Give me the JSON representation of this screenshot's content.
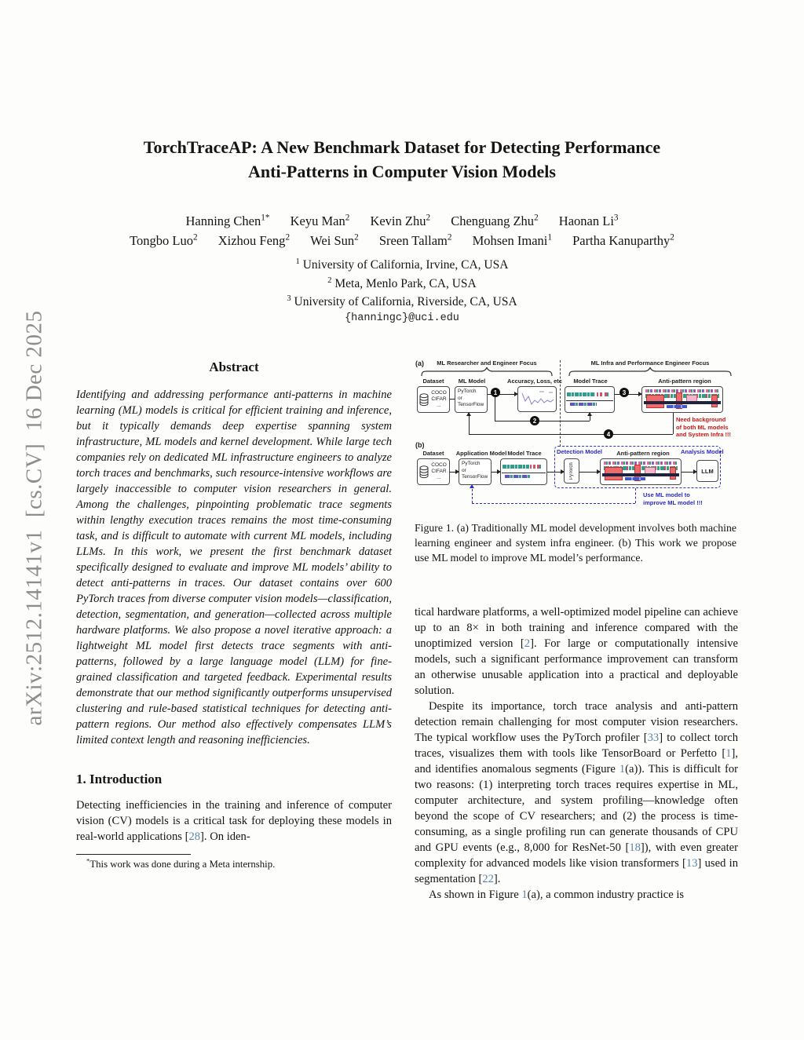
{
  "colors": {
    "citation_link": "#5b84a8",
    "figure_warning_red": "#cc1414",
    "figure_accent_blue": "#2a2ac8",
    "watermark_gray": "#8d8d8d"
  },
  "sidebar": {
    "arxiv_label": "arXiv:2512.14141v1  [cs.CV]  16 Dec 2025"
  },
  "header": {
    "title_line1": "TorchTraceAP: A New Benchmark Dataset for Detecting Performance",
    "title_line2": "Anti-Patterns in Computer Vision Models",
    "authors_line1": [
      {
        "name": "Hanning Chen",
        "sup": "1*"
      },
      {
        "name": "Keyu Man",
        "sup": "2"
      },
      {
        "name": "Kevin Zhu",
        "sup": "2"
      },
      {
        "name": "Chenguang Zhu",
        "sup": "2"
      },
      {
        "name": "Haonan Li",
        "sup": "3"
      }
    ],
    "authors_line2": [
      {
        "name": "Tongbo Luo",
        "sup": "2"
      },
      {
        "name": "Xizhou Feng",
        "sup": "2"
      },
      {
        "name": "Wei Sun",
        "sup": "2"
      },
      {
        "name": "Sreen Tallam",
        "sup": "2"
      },
      {
        "name": "Mohsen Imani",
        "sup": "1"
      },
      {
        "name": "Partha Kanuparthy",
        "sup": "2"
      }
    ],
    "affiliations": [
      {
        "sup": "1",
        "text": "University of California, Irvine, CA, USA"
      },
      {
        "sup": "2",
        "text": "Meta, Menlo Park, CA, USA"
      },
      {
        "sup": "3",
        "text": "University of California, Riverside, CA, USA"
      }
    ],
    "email": "{hanningc}@uci.edu"
  },
  "abstract": {
    "heading": "Abstract",
    "text": "Identifying and addressing performance anti-patterns in machine learning (ML) models is critical for efficient training and inference, but it typically demands deep expertise spanning system infrastructure, ML models and kernel development. While large tech companies rely on dedicated ML infrastructure engineers to analyze torch traces and benchmarks, such resource-intensive workflows are largely inaccessible to computer vision researchers in general. Among the challenges, pinpointing problematic trace segments within lengthy execution traces remains the most time-consuming task, and is difficult to automate with current ML models, including LLMs. In this work, we present the first benchmark dataset specifically designed to evaluate and improve ML models’ ability to detect anti-patterns in traces. Our dataset contains over 600 PyTorch traces from diverse computer vision models—classification, detection, segmentation, and generation—collected across multiple hardware platforms. We also propose a novel iterative approach: a lightweight ML model first detects trace segments with anti-patterns, followed by a large language model (LLM) for fine-grained classification and targeted feedback. Experimental results demonstrate that our method significantly outperforms unsupervised clustering and rule-based statistical techniques for detecting anti-pattern regions. Our method also effectively compensates LLM’s limited context length and reasoning inefficiencies."
  },
  "introduction": {
    "heading": "1. Introduction",
    "paragraph": [
      {
        "t": "t",
        "s": "Detecting inefficiencies in the training and inference of computer vision (CV) models is a critical task for deploying these models in real-world applications ["
      },
      {
        "t": "c",
        "s": "28"
      },
      {
        "t": "t",
        "s": "]. On iden-"
      }
    ]
  },
  "footnote": {
    "marker": "*",
    "text": "This work was done during a Meta internship."
  },
  "figure1": {
    "panel_a": {
      "tag": "(a)",
      "left_scope": "ML Researcher and Engineer Focus",
      "right_scope": "ML Infra and Performance Engineer Focus",
      "dataset_label": "Dataset",
      "dataset_items": "COCO\nCIFAR\n...",
      "ml_model_label": "ML Model",
      "ml_model_text": "PyTorch\nor\nTensorFlow",
      "accuracy_label": "Accuracy, Loss, etc",
      "model_trace_label": "Model Trace",
      "anti_pattern_label": "Anti-pattern region",
      "step1": "1",
      "step2": "2",
      "step3": "3",
      "step4": "4",
      "warning_text": "Need background\nof both ML models\nand System Infra !!!"
    },
    "panel_b": {
      "tag": "(b)",
      "dataset_label": "Dataset",
      "dataset_items": "COCO\nCIFAR\n...",
      "application_model_label": "Application Model",
      "application_model_text": "PyTorch\nor\nTensorFlow",
      "model_trace_label": "Model Trace",
      "detection_model_label": "Detection Model",
      "detection_model_text": "PyTorch",
      "anti_pattern_label": "Anti-pattern region",
      "analysis_model_label": "Analysis Model",
      "analysis_model_text": "LLM",
      "feedback_text": "Use ML model to\nimprove ML model !!!"
    },
    "caption": "Figure 1. (a) Traditionally ML model development involves both machine learning engineer and system infra engineer.  (b) This work we propose use ML model to improve ML model’s performance."
  },
  "right_column": {
    "p1": [
      {
        "t": "t",
        "s": "tical hardware platforms, a well-optimized model pipeline can achieve up to an 8× in both training and inference compared with the unoptimized version ["
      },
      {
        "t": "c",
        "s": "2"
      },
      {
        "t": "t",
        "s": "]. For large or computationally intensive models, such a significant performance improvement can transform an otherwise unusable application into a practical and deployable solution."
      }
    ],
    "p2": [
      {
        "t": "t",
        "s": "Despite its importance, torch trace analysis and anti-pattern detection remain challenging for most computer vision researchers. The typical workflow uses the PyTorch profiler ["
      },
      {
        "t": "c",
        "s": "33"
      },
      {
        "t": "t",
        "s": "] to collect torch traces, visualizes them with tools like TensorBoard or Perfetto ["
      },
      {
        "t": "c",
        "s": "1"
      },
      {
        "t": "t",
        "s": "], and identifies anomalous segments (Figure "
      },
      {
        "t": "c",
        "s": "1"
      },
      {
        "t": "t",
        "s": "(a)). This is difficult for two reasons: (1) interpreting torch traces requires expertise in ML, computer architecture, and system profiling—knowledge often beyond the scope of CV researchers; and (2) the process is time-consuming, as a single profiling run can generate thousands of CPU and GPU events (e.g.,  8,000 for ResNet-50 ["
      },
      {
        "t": "c",
        "s": "18"
      },
      {
        "t": "t",
        "s": "]), with even greater complexity for advanced models like vision transformers ["
      },
      {
        "t": "c",
        "s": "13"
      },
      {
        "t": "t",
        "s": "] used in segmentation ["
      },
      {
        "t": "c",
        "s": "22"
      },
      {
        "t": "t",
        "s": "]."
      }
    ],
    "p3": [
      {
        "t": "t",
        "s": "As shown in Figure "
      },
      {
        "t": "c",
        "s": "1"
      },
      {
        "t": "t",
        "s": "(a), a common industry practice is"
      }
    ]
  }
}
